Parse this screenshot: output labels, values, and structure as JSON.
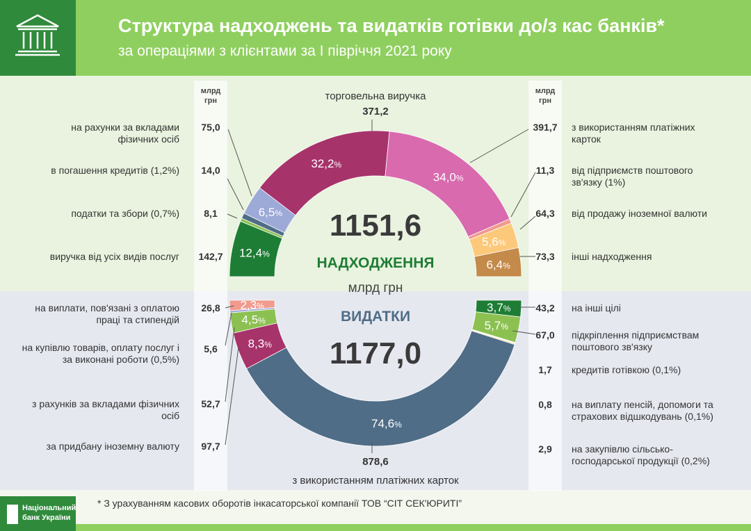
{
  "header": {
    "title": "Структура надходжень та видатків готівки до/з кас банків*",
    "subtitle": "за операціями з клієнтами за І півріччя 2021 року"
  },
  "units": {
    "left": "млрд грн",
    "right": "млрд грн"
  },
  "center": {
    "income_total": "1151,6",
    "income_label": "НАДХОДЖЕННЯ",
    "unit": "млрд грн",
    "expense_label": "ВИДАТКИ",
    "expense_total": "1177,0"
  },
  "top_label": {
    "text": "торговельна виручка",
    "value": "371,2"
  },
  "bottom_label": {
    "value": "878,6",
    "text": "з використанням платіжних карток"
  },
  "income_left": [
    {
      "text": "на рахунки за вкладами фізичних осіб",
      "value": "75,0"
    },
    {
      "text": "в погашення кредитів (1,2%)",
      "value": "14,0"
    },
    {
      "text": "податки та збори (0,7%)",
      "value": "8,1"
    },
    {
      "text": "виручка від усіх видів послуг",
      "value": "142,7"
    }
  ],
  "income_right": [
    {
      "text": "з використанням платіжних карток",
      "value": "391,7"
    },
    {
      "text": "від підприємств поштового зв'язку (1%)",
      "value": "11,3"
    },
    {
      "text": "від продажу іноземної валюти",
      "value": "64,3"
    },
    {
      "text": "інші надходження",
      "value": "73,3"
    }
  ],
  "expense_left": [
    {
      "text": "на виплати, пов'язані з оплатою праці та стипендій",
      "value": "26,8"
    },
    {
      "text": "на купівлю товарів, оплату послуг і за виконані роботи (0,5%)",
      "value": "5,6"
    },
    {
      "text": "з рахунків за вкладами фізичних осіб",
      "value": "52,7"
    },
    {
      "text": "за придбану іноземну валюту",
      "value": "97,7"
    }
  ],
  "expense_right": [
    {
      "text": "на інші цілі",
      "value": "43,2"
    },
    {
      "text": "підкріплення підприємствам поштового зв'язку",
      "value": "67,0"
    },
    {
      "text": "кредитів готівкою (0,1%)",
      "value": "1,7"
    },
    {
      "text": "на виплату пенсій, допомоги та страхових відшкодувань (0,1%)",
      "value": "0,8"
    },
    {
      "text": "на закупівлю сільсько-господарської продукції (0,2%)",
      "value": "2,9"
    }
  ],
  "chart_data": [
    {
      "type": "pie",
      "title": "НАДХОДЖЕННЯ",
      "total": 1151.6,
      "slices": [
        {
          "name": "виручка від усіх видів послуг",
          "value": 142.7,
          "pct": 12.4,
          "label": "12,4",
          "color": "#1e7d34"
        },
        {
          "name": "податки та збори",
          "value": 8.1,
          "pct": 0.7,
          "label": "",
          "color": "#8cc152"
        },
        {
          "name": "в погашення кредитів",
          "value": 14.0,
          "pct": 1.2,
          "label": "",
          "color": "#4f6d86"
        },
        {
          "name": "на рахунки за вкладами фізичних осіб",
          "value": 75.0,
          "pct": 6.5,
          "label": "6,5",
          "color": "#9da9d6"
        },
        {
          "name": "торговельна виручка",
          "value": 371.2,
          "pct": 32.2,
          "label": "32,2",
          "color": "#a7336b"
        },
        {
          "name": "з використанням платіжних карток",
          "value": 391.7,
          "pct": 34.0,
          "label": "34,0",
          "color": "#d96aae"
        },
        {
          "name": "від підприємств поштового зв'язку",
          "value": 11.3,
          "pct": 1.0,
          "label": "",
          "color": "#f19a8e"
        },
        {
          "name": "від продажу іноземної валюти",
          "value": 64.3,
          "pct": 5.6,
          "label": "5,6",
          "color": "#fcc87a"
        },
        {
          "name": "інші надходження",
          "value": 73.3,
          "pct": 6.4,
          "label": "6,4",
          "color": "#c48a4a"
        }
      ]
    },
    {
      "type": "pie",
      "title": "ВИДАТКИ",
      "total": 1177.0,
      "slices": [
        {
          "name": "на інші цілі",
          "value": 43.2,
          "pct": 3.7,
          "label": "3,7",
          "color": "#1e7d34"
        },
        {
          "name": "підкріплення підприємствам поштового зв'язку",
          "value": 67.0,
          "pct": 5.7,
          "label": "5,7",
          "color": "#8cc152"
        },
        {
          "name": "кредитів готівкою",
          "value": 1.7,
          "pct": 0.1,
          "label": "",
          "color": "#9da9d6"
        },
        {
          "name": "на виплату пенсій, допомоги та страхових відшкодувань",
          "value": 0.8,
          "pct": 0.1,
          "label": "",
          "color": "#d96aae"
        },
        {
          "name": "на закупівлю сільськогосподарської продукції",
          "value": 2.9,
          "pct": 0.2,
          "label": "",
          "color": "#fcc87a"
        },
        {
          "name": "з використанням платіжних карток",
          "value": 878.6,
          "pct": 74.6,
          "label": "74,6",
          "color": "#4f6d86"
        },
        {
          "name": "за придбану іноземну валюту",
          "value": 97.7,
          "pct": 8.3,
          "label": "8,3",
          "color": "#a7336b"
        },
        {
          "name": "з рахунків за вкладами фізичних осіб",
          "value": 52.7,
          "pct": 4.5,
          "label": "4,5",
          "color": "#8cc152"
        },
        {
          "name": "на купівлю товарів, оплату послуг і за виконані роботи",
          "value": 5.6,
          "pct": 0.5,
          "label": "",
          "color": "#9da9d6"
        },
        {
          "name": "на виплати, пов'язані з оплатою праці та стипендій",
          "value": 26.8,
          "pct": 2.3,
          "label": "2,3",
          "color": "#f19a8e"
        }
      ]
    }
  ],
  "footnote": "* З урахуванням касових оборотів інкасаторської компанії ТОВ “СІТ СЕК'ЮРИТІ”",
  "logo": {
    "line1": "Національний",
    "line2": "банк України"
  }
}
